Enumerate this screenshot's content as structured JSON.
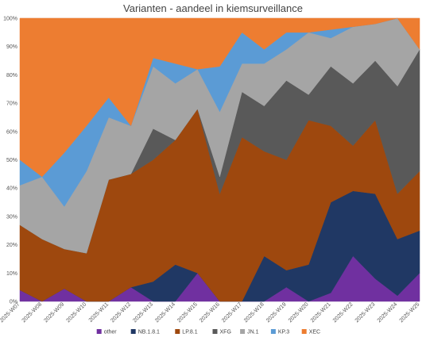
{
  "chart_data": {
    "type": "area",
    "stacked": true,
    "percent": true,
    "title": "Varianten - aandeel in kiemsurveillance",
    "xlabel": "",
    "ylabel": "",
    "ylim": [
      0,
      100
    ],
    "yticks": [
      "0%",
      "10%",
      "20%",
      "30%",
      "40%",
      "50%",
      "60%",
      "70%",
      "80%",
      "90%",
      "100%"
    ],
    "grid": true,
    "legend": "bottom",
    "categories": [
      "2025-W07",
      "2025-W08",
      "2025-W09",
      "2025-W10",
      "2025-W11",
      "2025-W12",
      "2025-W13",
      "2025-W14",
      "2025-W15",
      "2025-W16",
      "2025-W17",
      "2025-W18",
      "2025-W19",
      "2025-W20",
      "2025-W21",
      "2025-W22",
      "2025-W23",
      "2025-W24",
      "2025-W25"
    ],
    "series": [
      {
        "name": "other",
        "color": "#7030a0",
        "values": [
          4,
          0,
          4.5,
          0,
          0,
          5,
          0,
          0,
          10,
          0,
          0,
          0,
          5,
          0,
          3,
          16,
          8,
          2,
          10
        ]
      },
      {
        "name": "NB.1.8.1",
        "color": "#203864",
        "values": [
          0,
          0,
          0,
          0,
          0,
          0,
          7,
          13,
          0,
          0,
          0,
          16,
          6,
          13,
          32,
          23,
          30,
          20,
          15
        ]
      },
      {
        "name": "LP.8.1",
        "color": "#9e480e",
        "values": [
          23,
          22,
          14,
          17,
          43,
          40,
          43,
          44,
          58,
          38,
          58,
          37,
          39,
          51,
          27,
          16,
          26,
          16,
          21
        ]
      },
      {
        "name": "XFG",
        "color": "#595959",
        "values": [
          0,
          0,
          0,
          0,
          0,
          0,
          11,
          0,
          0,
          6,
          16,
          16,
          28,
          9,
          21,
          22,
          21,
          38,
          43
        ]
      },
      {
        "name": "JN.1",
        "color": "#a5a5a5",
        "values": [
          14,
          22,
          15,
          29,
          22,
          17,
          22,
          20,
          14,
          23,
          10,
          15,
          11,
          22,
          10,
          20,
          13,
          24,
          0
        ]
      },
      {
        "name": "KP.3",
        "color": "#5b9bd5",
        "values": [
          9,
          0,
          19,
          16,
          7,
          0,
          3,
          7,
          0,
          16,
          11,
          5,
          6,
          0,
          3,
          0,
          0,
          0,
          0
        ]
      },
      {
        "name": "XEC",
        "color": "#ed7d31",
        "values": [
          50,
          56,
          47.5,
          38,
          28,
          38,
          14,
          16,
          18,
          17,
          5,
          11,
          5,
          5,
          4,
          3,
          2,
          0,
          11
        ]
      }
    ]
  }
}
